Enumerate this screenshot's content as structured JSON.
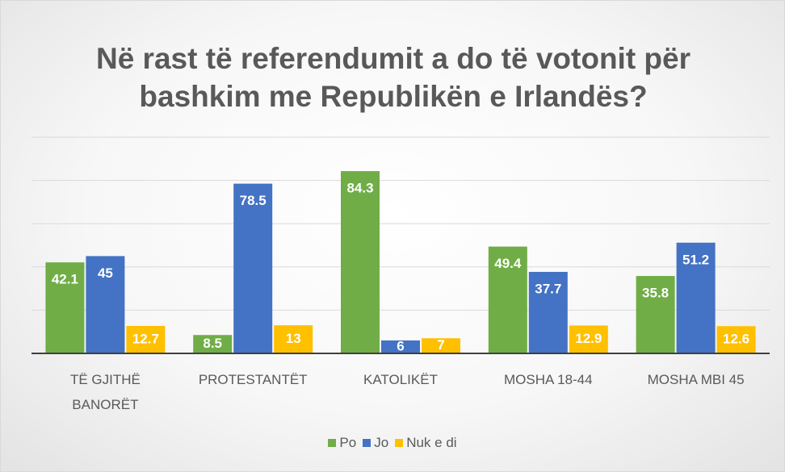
{
  "chart_data": {
    "type": "bar",
    "title": "Në rast të referendumit a do të votonit për bashkim me Republikën e Irlandës?",
    "categories": [
      "TË GJITHË BANORËT",
      "PROTESTANTËT",
      "KATOLIKËT",
      "MOSHA 18-44",
      "MOSHA MBI 45"
    ],
    "series": [
      {
        "name": "Po",
        "color": "#70ad47",
        "values": [
          42.1,
          8.5,
          84.3,
          49.4,
          35.8
        ]
      },
      {
        "name": "Jo",
        "color": "#4472c4",
        "values": [
          45,
          78.5,
          6,
          37.7,
          51.2
        ]
      },
      {
        "name": "Nuk e di",
        "color": "#ffc000",
        "values": [
          12.7,
          13,
          7,
          12.9,
          12.6
        ]
      }
    ],
    "ylim": [
      0,
      100
    ],
    "yticks": [
      0,
      20,
      40,
      60,
      80,
      100
    ],
    "grid": true,
    "legend": "bottom"
  }
}
